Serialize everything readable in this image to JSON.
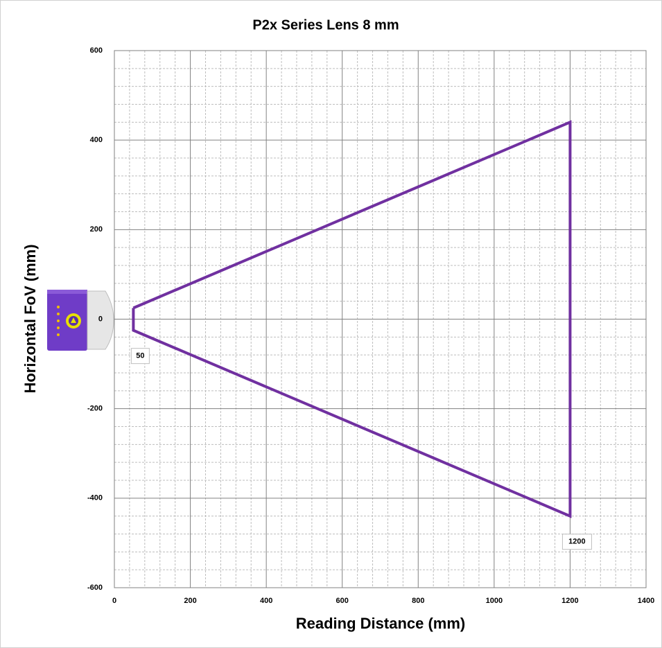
{
  "chart_data": {
    "type": "line",
    "title": "P2x Series Lens 8 mm",
    "x_label": "Reading Distance (mm)",
    "y_label": "Horizontal FoV (mm)",
    "series": [
      {
        "color": "#7030a0",
        "x": [
          50,
          1200,
          1200,
          50,
          50
        ],
        "values": [
          25,
          440,
          -440,
          -25,
          25
        ]
      }
    ],
    "xlim": [
      0,
      1400
    ],
    "xticks": [
      0,
      200,
      400,
      600,
      800,
      1000,
      1200,
      1400
    ],
    "ylim": [
      -600,
      600
    ],
    "yticks": [
      -600,
      -400,
      -200,
      0,
      200,
      400,
      600
    ],
    "grid": true,
    "minor_grid": true,
    "annotations": [
      {
        "text": "50",
        "x": 50,
        "y": -25
      },
      {
        "text": "1200",
        "x": 1200,
        "y": -440
      }
    ]
  }
}
